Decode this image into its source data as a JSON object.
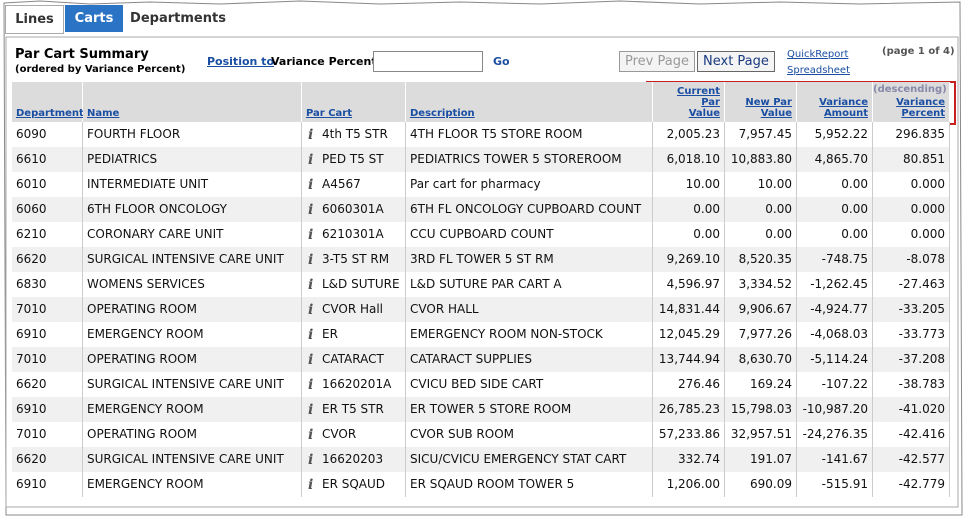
{
  "tabs": [
    "Lines",
    "Carts",
    "Departments"
  ],
  "header": {
    "title": "Par Cart Summary",
    "subtitle": "(ordered by Variance Percent)"
  },
  "position": {
    "link": "Position to",
    "field": "Variance Percent",
    "go": "Go"
  },
  "buttons": {
    "prev": "Prev Page",
    "next": "Next Page"
  },
  "links": {
    "quick_report": "QuickReport",
    "spreadsheet": "Spreadsheet",
    "page_info": "(page 1 of 4)"
  },
  "table": {
    "sort_note": "(descending)",
    "columns": [
      "Department",
      "Name",
      "Par Cart",
      "Description",
      "Current Par Value",
      "New Par Value",
      "Variance Amount",
      "Variance Percent"
    ],
    "rows": [
      [
        "6090",
        "FOURTH FLOOR",
        "4th T5 STR",
        "4TH FLOOR T5 STORE ROOM",
        "2,005.23",
        "7,957.45",
        "5,952.22",
        "296.835"
      ],
      [
        "6610",
        "PEDIATRICS",
        "PED T5 ST",
        "PEDIATRICS TOWER 5 STOREROOM",
        "6,018.10",
        "10,883.80",
        "4,865.70",
        "80.851"
      ],
      [
        "6010",
        "INTERMEDIATE UNIT",
        "A4567",
        "Par cart for pharmacy",
        "10.00",
        "10.00",
        "0.00",
        "0.000"
      ],
      [
        "6060",
        "6TH FLOOR ONCOLOGY",
        "6060301A",
        "6TH FL ONCOLOGY CUPBOARD COUNT",
        "0.00",
        "0.00",
        "0.00",
        "0.000"
      ],
      [
        "6210",
        "CORONARY CARE UNIT",
        "6210301A",
        "CCU CUPBOARD COUNT",
        "0.00",
        "0.00",
        "0.00",
        "0.000"
      ],
      [
        "6620",
        "SURGICAL INTENSIVE CARE UNIT",
        "3-T5 ST RM",
        "3RD FL TOWER 5 ST RM",
        "9,269.10",
        "8,520.35",
        "-748.75",
        "-8.078"
      ],
      [
        "6830",
        "WOMENS SERVICES",
        "L&D SUTURE",
        "L&D SUTURE PAR CART A",
        "4,596.97",
        "3,334.52",
        "-1,262.45",
        "-27.463"
      ],
      [
        "7010",
        "OPERATING ROOM",
        "CVOR Hall",
        "CVOR HALL",
        "14,831.44",
        "9,906.67",
        "-4,924.77",
        "-33.205"
      ],
      [
        "6910",
        "EMERGENCY ROOM",
        "ER",
        "EMERGENCY ROOM NON-STOCK",
        "12,045.29",
        "7,977.26",
        "-4,068.03",
        "-33.773"
      ],
      [
        "7010",
        "OPERATING ROOM",
        "CATARACT",
        "CATARACT SUPPLIES",
        "13,744.94",
        "8,630.70",
        "-5,114.24",
        "-37.208"
      ],
      [
        "6620",
        "SURGICAL INTENSIVE CARE UNIT",
        "16620201A",
        "CVICU BED SIDE CART",
        "276.46",
        "169.24",
        "-107.22",
        "-38.783"
      ],
      [
        "6910",
        "EMERGENCY ROOM",
        "ER T5 STR",
        "ER TOWER 5 STORE ROOM",
        "26,785.23",
        "15,798.03",
        "-10,987.20",
        "-41.020"
      ],
      [
        "7010",
        "OPERATING ROOM",
        "CVOR",
        "CVOR SUB ROOM",
        "57,233.86",
        "32,957.51",
        "-24,276.35",
        "-42.416"
      ],
      [
        "6620",
        "SURGICAL INTENSIVE CARE UNIT",
        "16620203",
        "SICU/CVICU EMERGENCY STAT CART",
        "332.74",
        "191.07",
        "-141.67",
        "-42.577"
      ],
      [
        "6910",
        "EMERGENCY ROOM",
        "ER SQAUD",
        "ER SQAUD ROOM TOWER 5",
        "1,206.00",
        "690.09",
        "-515.91",
        "-42.779"
      ]
    ]
  }
}
